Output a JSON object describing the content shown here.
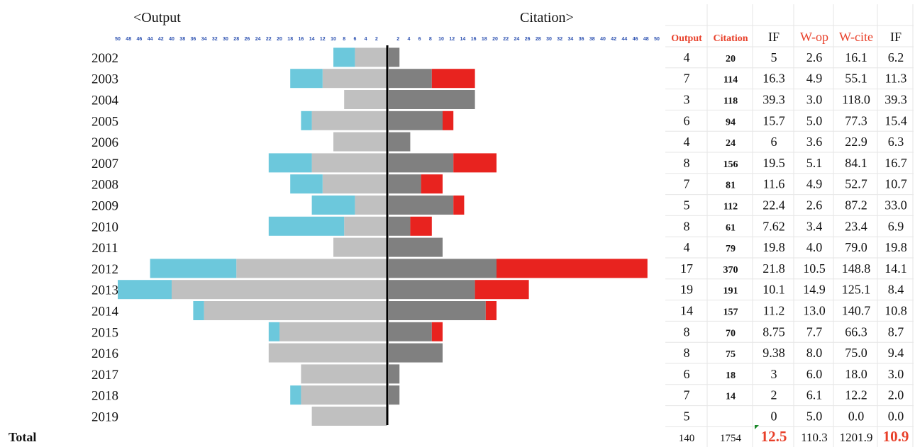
{
  "chart_data": {
    "type": "bar",
    "subtype": "butterfly-stacked",
    "left_header": "<Output",
    "right_header": "Citation>",
    "years": [
      "2002",
      "2003",
      "2004",
      "2005",
      "2006",
      "2007",
      "2008",
      "2009",
      "2010",
      "2011",
      "2012",
      "2013",
      "2014",
      "2015",
      "2016",
      "2017",
      "2018",
      "2019"
    ],
    "left_ticks": [
      "50",
      "48",
      "46",
      "44",
      "42",
      "40",
      "38",
      "36",
      "34",
      "32",
      "30",
      "28",
      "26",
      "24",
      "22",
      "20",
      "18",
      "16",
      "14",
      "12",
      "10",
      "8",
      "6",
      "4",
      "2"
    ],
    "right_ticks": [
      "2",
      "4",
      "6",
      "8",
      "10",
      "12",
      "14",
      "16",
      "18",
      "20",
      "22",
      "24",
      "26",
      "28",
      "30",
      "32",
      "34",
      "36",
      "38",
      "40",
      "42",
      "44",
      "46",
      "48",
      "50"
    ],
    "output_gray": [
      6,
      12,
      8,
      14,
      10,
      14,
      12,
      6,
      8,
      10,
      28,
      40,
      34,
      20,
      22,
      16,
      16,
      14
    ],
    "output_cyan": [
      4,
      6,
      0,
      2,
      0,
      8,
      6,
      8,
      14,
      0,
      16,
      10,
      2,
      2,
      0,
      0,
      2,
      0
    ],
    "citation_dark": [
      2,
      8,
      16,
      10,
      4,
      12,
      6,
      12,
      4,
      10,
      20,
      16,
      18,
      8,
      10,
      2,
      2,
      0
    ],
    "citation_red": [
      0,
      8,
      0,
      2,
      0,
      8,
      4,
      2,
      4,
      0,
      28,
      10,
      2,
      2,
      0,
      0,
      0,
      0
    ],
    "axis_range": [
      50,
      50
    ],
    "colors": {
      "output_gray": "#c0c0c0",
      "output_cyan": "#6cc8dc",
      "citation_dark": "#808080",
      "citation_red": "#e8231f",
      "header_red": "#e8402a",
      "grid": "#e6e6e6"
    },
    "table": {
      "columns": [
        "Output",
        "Citation",
        "IF",
        "W-op",
        "W-cite",
        "IF"
      ],
      "column_colors": [
        "red",
        "red",
        "black",
        "red",
        "red",
        "black"
      ],
      "rows": [
        [
          "4",
          "20",
          "5",
          "2.6",
          "16.1",
          "6.2"
        ],
        [
          "7",
          "114",
          "16.3",
          "4.9",
          "55.1",
          "11.3"
        ],
        [
          "3",
          "118",
          "39.3",
          "3.0",
          "118.0",
          "39.3"
        ],
        [
          "6",
          "94",
          "15.7",
          "5.0",
          "77.3",
          "15.4"
        ],
        [
          "4",
          "24",
          "6",
          "3.6",
          "22.9",
          "6.3"
        ],
        [
          "8",
          "156",
          "19.5",
          "5.1",
          "84.1",
          "16.7"
        ],
        [
          "7",
          "81",
          "11.6",
          "4.9",
          "52.7",
          "10.7"
        ],
        [
          "5",
          "112",
          "22.4",
          "2.6",
          "87.2",
          "33.0"
        ],
        [
          "8",
          "61",
          "7.62",
          "3.4",
          "23.4",
          "6.9"
        ],
        [
          "4",
          "79",
          "19.8",
          "4.0",
          "79.0",
          "19.8"
        ],
        [
          "17",
          "370",
          "21.8",
          "10.5",
          "148.8",
          "14.1"
        ],
        [
          "19",
          "191",
          "10.1",
          "14.9",
          "125.1",
          "8.4"
        ],
        [
          "14",
          "157",
          "11.2",
          "13.0",
          "140.7",
          "10.8"
        ],
        [
          "8",
          "70",
          "8.75",
          "7.7",
          "66.3",
          "8.7"
        ],
        [
          "8",
          "75",
          "9.38",
          "8.0",
          "75.0",
          "9.4"
        ],
        [
          "6",
          "18",
          "3",
          "6.0",
          "18.0",
          "3.0"
        ],
        [
          "7",
          "14",
          "2",
          "6.1",
          "12.2",
          "2.0"
        ],
        [
          "5",
          "",
          "0",
          "5.0",
          "0.0",
          "0.0"
        ]
      ],
      "total_label": "Total",
      "total_row": [
        "140",
        "1754",
        "12.5",
        "110.3",
        "1201.9",
        "10.9"
      ],
      "total_highlight": [
        false,
        false,
        true,
        false,
        false,
        true
      ]
    }
  }
}
